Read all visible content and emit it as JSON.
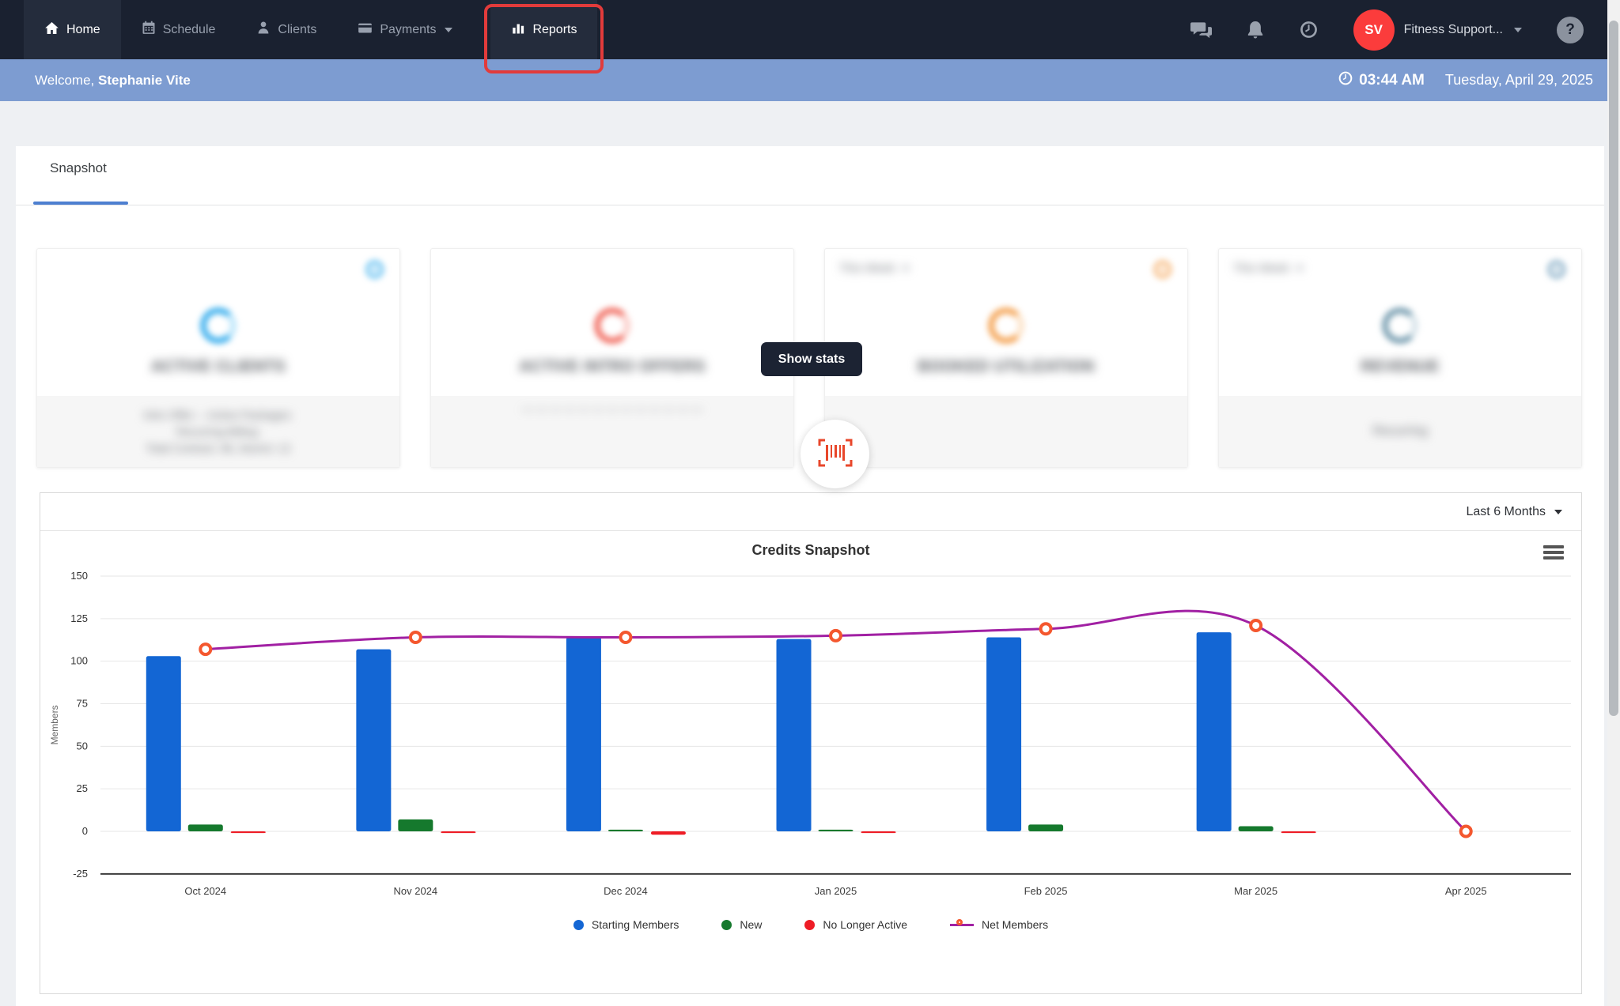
{
  "nav": {
    "items": [
      {
        "label": "Home"
      },
      {
        "label": "Schedule"
      },
      {
        "label": "Clients"
      },
      {
        "label": "Payments"
      },
      {
        "label": "Reports"
      }
    ],
    "account": {
      "initials": "SV",
      "name": "Fitness Support..."
    },
    "help_glyph": "?"
  },
  "welcome": {
    "greeting": "Welcome, ",
    "user_name": "Stephanie Vite",
    "time": "03:44 AM",
    "date": "Tuesday, April 29, 2025"
  },
  "tabs": {
    "snapshot": "Snapshot"
  },
  "stat_cards": [
    {
      "title": "ACTIVE CLIENTS",
      "period": "",
      "accent": "#45b3ee",
      "footer_lines": [
        "Intro Offer: –  Active Packages:",
        "Recurring Billing:",
        "Total Contract: 96, Alumni: 12"
      ]
    },
    {
      "title": "ACTIVE INTRO OFFERS",
      "period": "",
      "accent": "#f2766b",
      "footer_lines": [
        "— — — — — — — — — — — — —",
        "",
        ""
      ]
    },
    {
      "title": "BOOKED UTILIZATION",
      "period": "This Week",
      "accent": "#f5a95f",
      "footer_lines": [
        "",
        "",
        ""
      ]
    },
    {
      "title": "REVENUE",
      "period": "This Week",
      "accent": "#7fa3b5",
      "footer_lines": [
        "Recurring",
        "",
        ""
      ]
    }
  ],
  "overlay": {
    "show_stats": "Show stats"
  },
  "chart_card": {
    "range_label": "Last 6 Months"
  },
  "chart_data": {
    "type": "bar+line combo",
    "title": "Credits Snapshot",
    "xlabel": "",
    "ylabel": "Members",
    "ylim": [
      -25,
      150
    ],
    "yticks": [
      150,
      125,
      100,
      75,
      50,
      25,
      0,
      -25
    ],
    "grid": true,
    "legend_position": "bottom",
    "categories": [
      "Oct 2024",
      "Nov 2024",
      "Dec 2024",
      "Jan 2025",
      "Feb 2025",
      "Mar 2025",
      "Apr 2025"
    ],
    "series": [
      {
        "name": "Starting Members",
        "type": "bar",
        "color": "#1366d4",
        "values": [
          103,
          107,
          114,
          113,
          114,
          117,
          0
        ]
      },
      {
        "name": "New",
        "type": "bar",
        "color": "#15792d",
        "values": [
          4,
          7,
          1,
          1,
          4,
          3,
          0
        ]
      },
      {
        "name": "No Longer Active",
        "type": "bar",
        "color": "#ee1c25",
        "values": [
          -1,
          -1,
          -2,
          -1,
          0,
          -1,
          0
        ]
      },
      {
        "name": "Net Members",
        "type": "line",
        "color": "#a120a3",
        "marker_color": "#f4572e",
        "values": [
          107,
          114,
          114,
          115,
          119,
          121,
          0
        ]
      }
    ]
  },
  "colors": {
    "nav_bg": "#1a2130",
    "nav_active_bg": "#242c3c",
    "welcome_bar": "#7d9cd1",
    "tab_underline": "#4d7fd0",
    "highlight_box": "#e23b3b",
    "avatar_bg": "#fb3c3c"
  }
}
